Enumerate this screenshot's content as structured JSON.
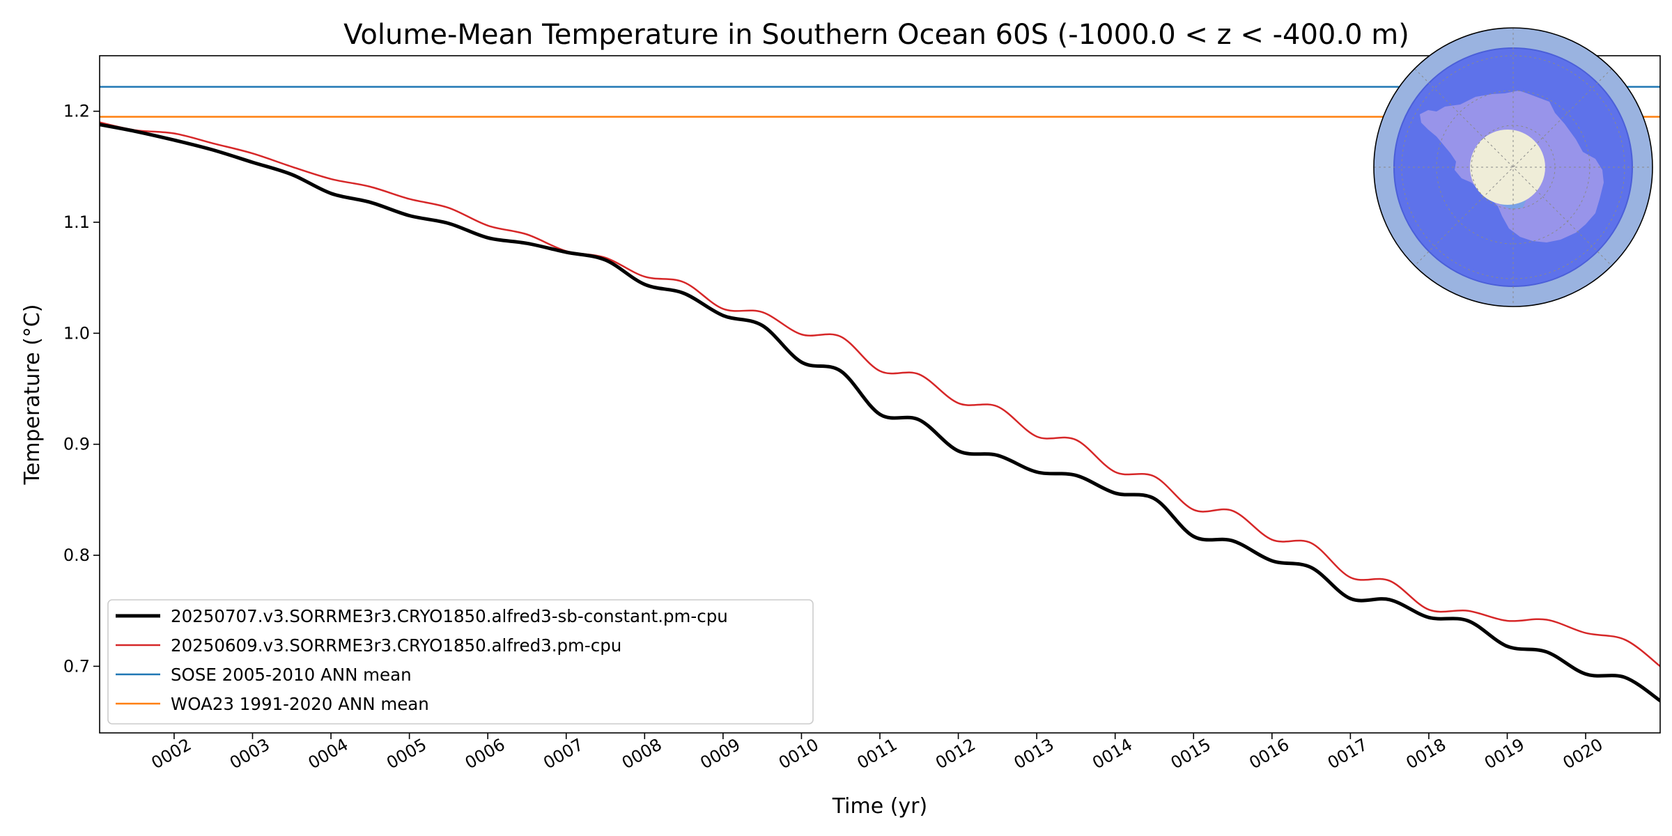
{
  "chart_data": {
    "type": "line",
    "title": "Volume-Mean Temperature in Southern Ocean 60S (-1000.0 < z < -400.0 m)",
    "xlabel": "Time (yr)",
    "ylabel": "Temperature ($^\\circ$C)",
    "ylabel_display": "Temperature (°C)",
    "xlim": [
      1.05,
      20.95
    ],
    "ylim": [
      0.64,
      1.25
    ],
    "xticks": [
      2,
      3,
      4,
      5,
      6,
      7,
      8,
      9,
      10,
      11,
      12,
      13,
      14,
      15,
      16,
      17,
      18,
      19,
      20
    ],
    "xtick_labels": [
      "0002",
      "0003",
      "0004",
      "0005",
      "0006",
      "0007",
      "0008",
      "0009",
      "0010",
      "0011",
      "0012",
      "0013",
      "0014",
      "0015",
      "0016",
      "0017",
      "0018",
      "0019",
      "0020"
    ],
    "yticks": [
      0.7,
      0.8,
      0.9,
      1.0,
      1.1,
      1.2
    ],
    "ytick_labels": [
      "0.7",
      "0.8",
      "0.9",
      "1.0",
      "1.1",
      "1.2"
    ],
    "grid": false,
    "legend_position": "lower-left",
    "series": [
      {
        "name": "20250707.v3.SORRME3r3.CRYO1850.alfred3-sb-constant.pm-cpu",
        "color": "#000000",
        "line_width": 5,
        "x": [
          1.05,
          1.5,
          2.0,
          2.5,
          3.0,
          3.5,
          4.0,
          4.5,
          5.0,
          5.5,
          6.0,
          6.5,
          7.0,
          7.5,
          8.0,
          8.5,
          9.0,
          9.5,
          10.0,
          10.5,
          11.0,
          11.5,
          12.0,
          12.5,
          13.0,
          13.5,
          14.0,
          14.5,
          15.0,
          15.5,
          16.0,
          16.5,
          17.0,
          17.5,
          18.0,
          18.5,
          19.0,
          19.5,
          20.0,
          20.5,
          20.95
        ],
        "y": [
          1.188,
          1.182,
          1.174,
          1.165,
          1.154,
          1.143,
          1.126,
          1.118,
          1.106,
          1.099,
          1.086,
          1.081,
          1.073,
          1.066,
          1.044,
          1.036,
          1.016,
          1.007,
          0.974,
          0.966,
          0.927,
          0.922,
          0.894,
          0.89,
          0.875,
          0.872,
          0.856,
          0.851,
          0.817,
          0.813,
          0.795,
          0.789,
          0.761,
          0.76,
          0.744,
          0.741,
          0.718,
          0.713,
          0.693,
          0.69,
          0.669
        ]
      },
      {
        "name": "20250609.v3.SORRME3r3.CRYO1850.alfred3.pm-cpu",
        "color": "#d62728",
        "line_width": 2.5,
        "x": [
          1.05,
          1.5,
          2.0,
          2.5,
          3.0,
          3.5,
          4.0,
          4.5,
          5.0,
          5.5,
          6.0,
          6.5,
          7.0,
          7.5,
          8.0,
          8.5,
          9.0,
          9.5,
          10.0,
          10.5,
          11.0,
          11.5,
          12.0,
          12.5,
          13.0,
          13.5,
          14.0,
          14.5,
          15.0,
          15.5,
          16.0,
          16.5,
          17.0,
          17.5,
          18.0,
          18.5,
          19.0,
          19.5,
          20.0,
          20.5,
          20.95
        ],
        "y": [
          1.19,
          1.183,
          1.18,
          1.171,
          1.162,
          1.15,
          1.139,
          1.132,
          1.121,
          1.113,
          1.097,
          1.089,
          1.074,
          1.068,
          1.051,
          1.046,
          1.022,
          1.019,
          0.999,
          0.997,
          0.966,
          0.963,
          0.937,
          0.934,
          0.907,
          0.904,
          0.875,
          0.871,
          0.841,
          0.84,
          0.814,
          0.811,
          0.78,
          0.777,
          0.751,
          0.75,
          0.741,
          0.742,
          0.73,
          0.724,
          0.7
        ]
      },
      {
        "name": "SOSE 2005-2010 ANN mean",
        "color": "#1f77b4",
        "line_width": 2.5,
        "x": [
          1.05,
          20.95
        ],
        "y": [
          1.222,
          1.222
        ]
      },
      {
        "name": "WOA23 1991-2020 ANN mean",
        "color": "#ff7f0e",
        "line_width": 2.5,
        "x": [
          1.05,
          20.95
        ],
        "y": [
          1.195,
          1.195
        ]
      }
    ]
  },
  "inset_map": {
    "description_label": "Southern Ocean south of 60S region map",
    "ocean_color": "#9ab3e0",
    "region_color": "#5e72ea",
    "land_color": "#9894ea",
    "pole_color": "#efedd8"
  }
}
